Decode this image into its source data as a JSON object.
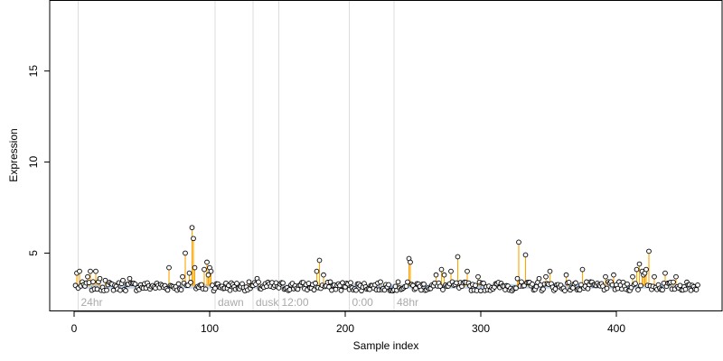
{
  "chart_data": {
    "type": "scatter",
    "title": "",
    "xlabel": "Sample index",
    "ylabel": "Expression",
    "xlim": [
      -18,
      478
    ],
    "ylim": [
      1.8,
      18.9
    ],
    "x_ticks": [
      0,
      100,
      200,
      300,
      400
    ],
    "y_ticks": [
      5,
      10,
      15
    ],
    "grid": false,
    "legend": "none",
    "baseline": 3.2,
    "colors": {
      "point_fill": "#ffffff",
      "point_stroke": "#000000",
      "spike_stem": "#ffa500",
      "below_baseline_stem": "#6f8fd6",
      "baseline_band": "#b0c4de",
      "separator": "#dddddd",
      "separator_label": "#aaaaaa"
    },
    "separators": [
      {
        "x": 3,
        "label": "24hr"
      },
      {
        "x": 104,
        "label": "dawn"
      },
      {
        "x": 132,
        "label": "dusk"
      },
      {
        "x": 151,
        "label": "12:00"
      },
      {
        "x": 203,
        "label": "0:00"
      },
      {
        "x": 236,
        "label": "48hr"
      }
    ],
    "n_points": 460,
    "spikes": [
      {
        "x": 2,
        "y": 3.9
      },
      {
        "x": 4,
        "y": 4.0
      },
      {
        "x": 10,
        "y": 3.7
      },
      {
        "x": 12,
        "y": 4.0
      },
      {
        "x": 16,
        "y": 4.0
      },
      {
        "x": 19,
        "y": 3.6
      },
      {
        "x": 23,
        "y": 3.5
      },
      {
        "x": 36,
        "y": 3.5
      },
      {
        "x": 41,
        "y": 3.6
      },
      {
        "x": 70,
        "y": 4.2
      },
      {
        "x": 80,
        "y": 3.7
      },
      {
        "x": 82,
        "y": 5.0
      },
      {
        "x": 85,
        "y": 3.9
      },
      {
        "x": 87,
        "y": 6.4
      },
      {
        "x": 88,
        "y": 5.8
      },
      {
        "x": 89,
        "y": 4.2
      },
      {
        "x": 96,
        "y": 4.1
      },
      {
        "x": 98,
        "y": 4.5
      },
      {
        "x": 99,
        "y": 3.8
      },
      {
        "x": 100,
        "y": 4.2
      },
      {
        "x": 101,
        "y": 4.0
      },
      {
        "x": 135,
        "y": 3.6
      },
      {
        "x": 179,
        "y": 4.0
      },
      {
        "x": 181,
        "y": 4.6
      },
      {
        "x": 184,
        "y": 3.8
      },
      {
        "x": 247,
        "y": 4.7
      },
      {
        "x": 248,
        "y": 4.5
      },
      {
        "x": 267,
        "y": 3.8
      },
      {
        "x": 271,
        "y": 4.1
      },
      {
        "x": 273,
        "y": 3.8
      },
      {
        "x": 278,
        "y": 4.0
      },
      {
        "x": 283,
        "y": 4.8
      },
      {
        "x": 290,
        "y": 4.0
      },
      {
        "x": 298,
        "y": 3.7
      },
      {
        "x": 327,
        "y": 3.6
      },
      {
        "x": 328,
        "y": 5.6
      },
      {
        "x": 333,
        "y": 4.9
      },
      {
        "x": 343,
        "y": 3.6
      },
      {
        "x": 348,
        "y": 3.7
      },
      {
        "x": 351,
        "y": 4.0
      },
      {
        "x": 363,
        "y": 3.8
      },
      {
        "x": 375,
        "y": 4.1
      },
      {
        "x": 392,
        "y": 3.7
      },
      {
        "x": 398,
        "y": 3.8
      },
      {
        "x": 412,
        "y": 3.7
      },
      {
        "x": 415,
        "y": 4.1
      },
      {
        "x": 417,
        "y": 4.4
      },
      {
        "x": 419,
        "y": 4.0
      },
      {
        "x": 420,
        "y": 3.8
      },
      {
        "x": 421,
        "y": 3.9
      },
      {
        "x": 422,
        "y": 4.1
      },
      {
        "x": 424,
        "y": 5.1
      },
      {
        "x": 428,
        "y": 3.7
      },
      {
        "x": 436,
        "y": 3.9
      },
      {
        "x": 444,
        "y": 3.7
      }
    ]
  }
}
